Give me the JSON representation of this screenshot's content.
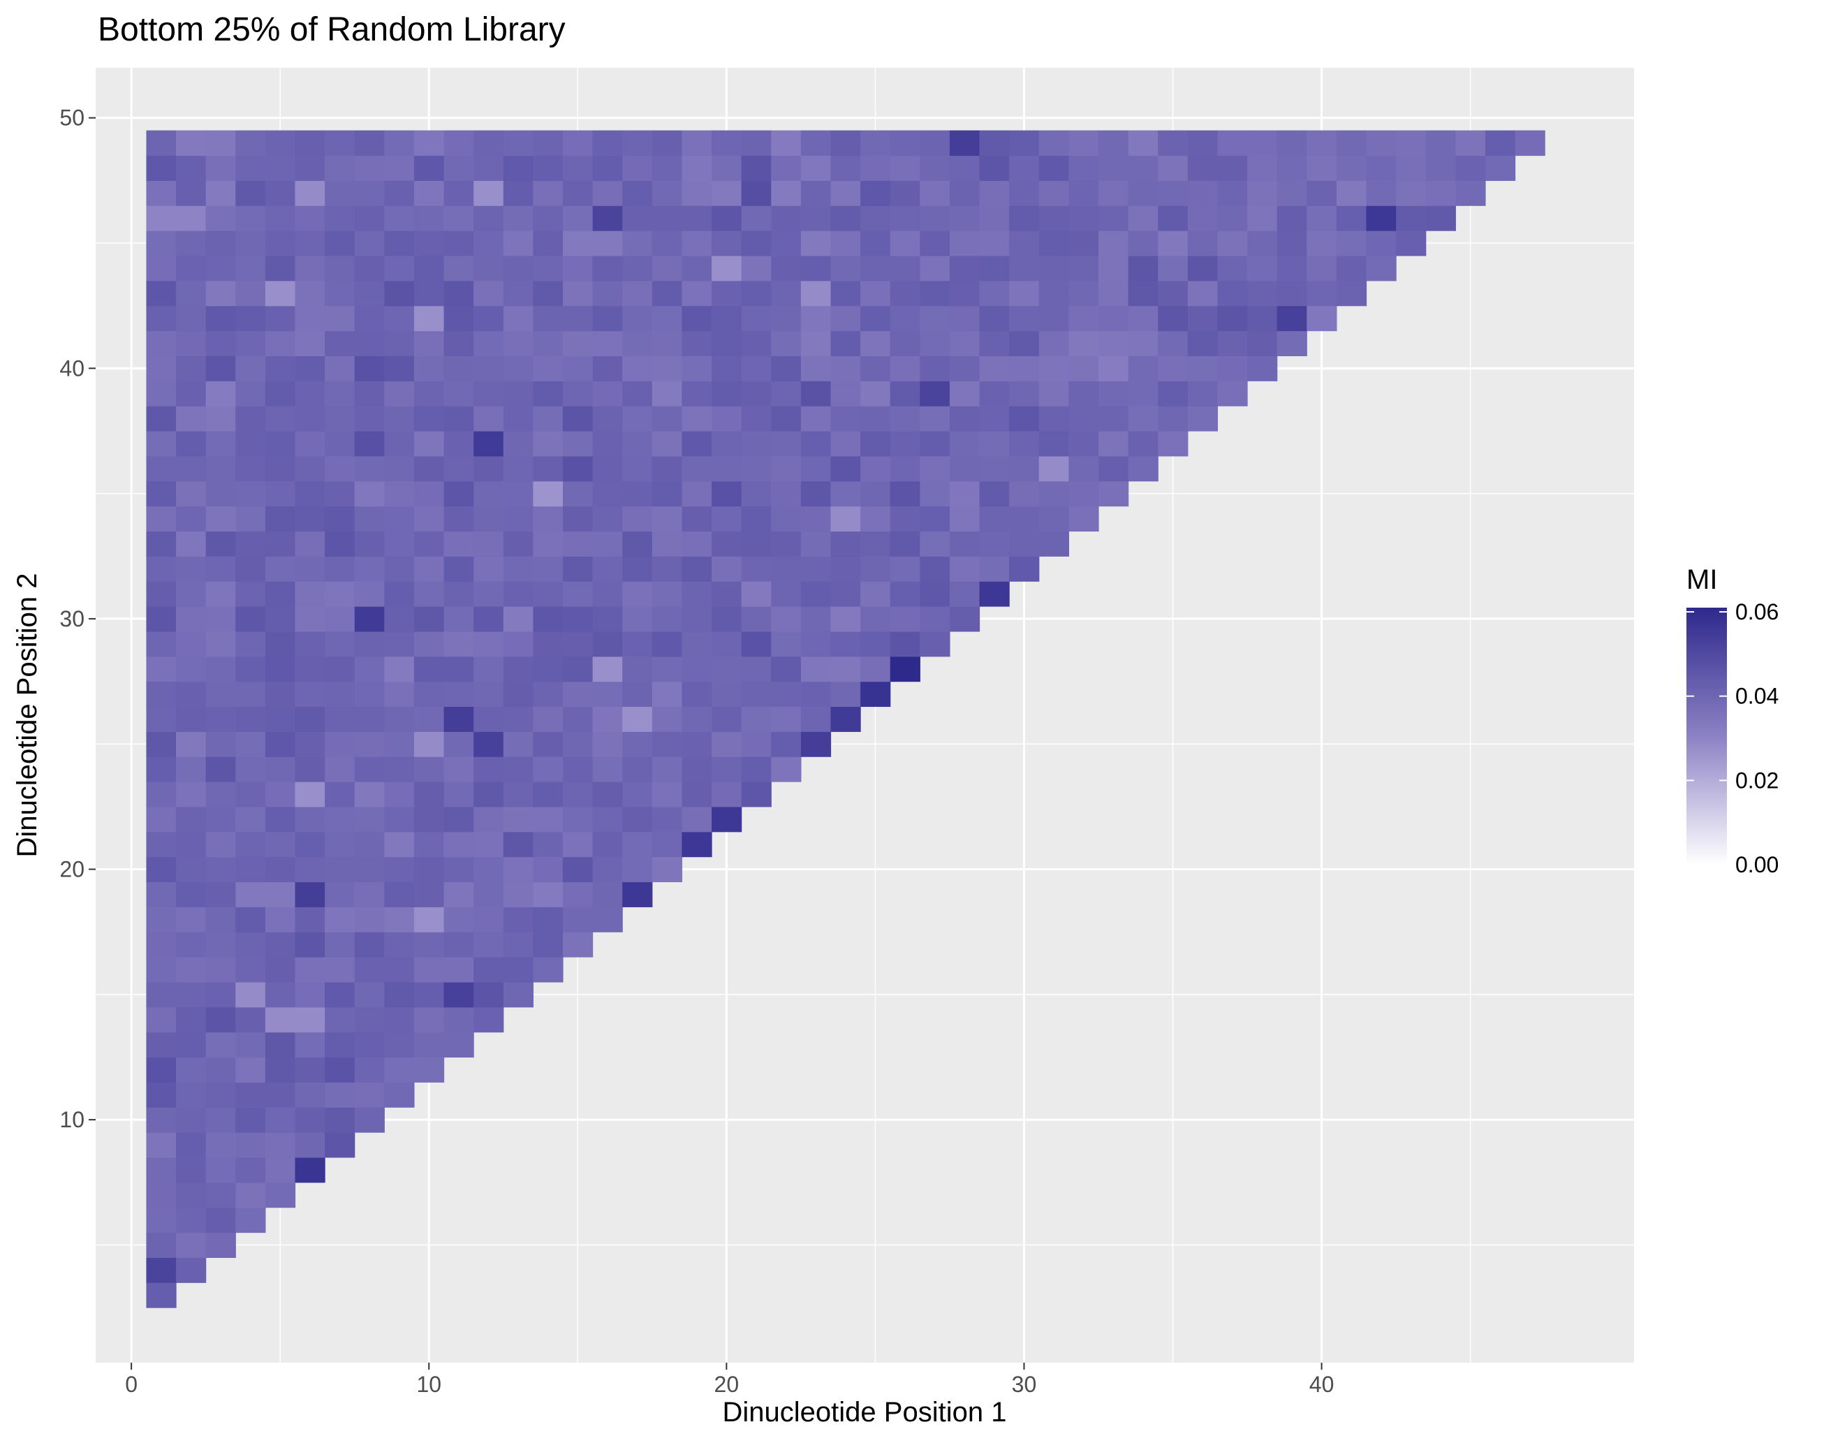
{
  "chart_data": {
    "type": "heatmap",
    "title": "Bottom 25% of Random Library",
    "xlabel": "Dinucleotide Position 1",
    "ylabel": "Dinucleotide Position 2",
    "xlim": [
      -1.2,
      50.5
    ],
    "ylim": [
      0.3,
      52
    ],
    "x_ticks": [
      0,
      10,
      20,
      30,
      40
    ],
    "y_ticks": [
      10,
      20,
      30,
      40,
      50
    ],
    "grid": true,
    "legend": {
      "title": "MI",
      "position": "right",
      "ticks": [
        "0.06",
        "0.04",
        "0.02",
        "0.00"
      ],
      "tick_values": [
        0.06,
        0.04,
        0.02,
        0.0
      ],
      "range": [
        0,
        0.061
      ],
      "colors": {
        "low": "#ffffff",
        "mid": "#8c81c4",
        "high": "#2e2a8c"
      }
    },
    "cell_rule": "A cell is drawn for every pair (x, y) with 1 <= x <= 47, 3 <= y <= 49 and y >= x + 2.",
    "x_range": [
      1,
      47
    ],
    "y_range": [
      3,
      49
    ],
    "mi_typical": 0.04,
    "mi_spread": 0.006,
    "highlighted_cells": [
      {
        "x": 26,
        "y": 28,
        "mi": 0.061
      },
      {
        "x": 25,
        "y": 27,
        "mi": 0.058
      },
      {
        "x": 6,
        "y": 8,
        "mi": 0.057
      },
      {
        "x": 29,
        "y": 31,
        "mi": 0.056
      },
      {
        "x": 24,
        "y": 26,
        "mi": 0.055
      },
      {
        "x": 20,
        "y": 22,
        "mi": 0.056
      },
      {
        "x": 17,
        "y": 19,
        "mi": 0.056
      },
      {
        "x": 19,
        "y": 21,
        "mi": 0.056
      },
      {
        "x": 23,
        "y": 25,
        "mi": 0.054
      },
      {
        "x": 42,
        "y": 46,
        "mi": 0.056
      },
      {
        "x": 6,
        "y": 19,
        "mi": 0.054
      },
      {
        "x": 12,
        "y": 37,
        "mi": 0.055
      },
      {
        "x": 11,
        "y": 26,
        "mi": 0.054
      },
      {
        "x": 8,
        "y": 30,
        "mi": 0.055
      },
      {
        "x": 1,
        "y": 4,
        "mi": 0.052
      },
      {
        "x": 12,
        "y": 25,
        "mi": 0.053
      },
      {
        "x": 11,
        "y": 15,
        "mi": 0.053
      },
      {
        "x": 28,
        "y": 49,
        "mi": 0.054
      },
      {
        "x": 39,
        "y": 42,
        "mi": 0.053
      },
      {
        "x": 27,
        "y": 39,
        "mi": 0.052
      },
      {
        "x": 16,
        "y": 46,
        "mi": 0.052
      },
      {
        "x": 4,
        "y": 15,
        "mi": 0.028
      },
      {
        "x": 5,
        "y": 14,
        "mi": 0.028
      },
      {
        "x": 6,
        "y": 14,
        "mi": 0.028
      },
      {
        "x": 5,
        "y": 43,
        "mi": 0.027
      },
      {
        "x": 10,
        "y": 42,
        "mi": 0.027
      },
      {
        "x": 12,
        "y": 47,
        "mi": 0.027
      },
      {
        "x": 6,
        "y": 47,
        "mi": 0.028
      },
      {
        "x": 20,
        "y": 44,
        "mi": 0.027
      },
      {
        "x": 23,
        "y": 43,
        "mi": 0.028
      },
      {
        "x": 14,
        "y": 35,
        "mi": 0.026
      },
      {
        "x": 6,
        "y": 23,
        "mi": 0.027
      },
      {
        "x": 10,
        "y": 18,
        "mi": 0.027
      },
      {
        "x": 10,
        "y": 25,
        "mi": 0.028
      },
      {
        "x": 17,
        "y": 26,
        "mi": 0.027
      },
      {
        "x": 16,
        "y": 28,
        "mi": 0.027
      },
      {
        "x": 24,
        "y": 34,
        "mi": 0.028
      },
      {
        "x": 31,
        "y": 36,
        "mi": 0.028
      },
      {
        "x": 1,
        "y": 46,
        "mi": 0.03
      },
      {
        "x": 2,
        "y": 46,
        "mi": 0.03
      }
    ]
  }
}
